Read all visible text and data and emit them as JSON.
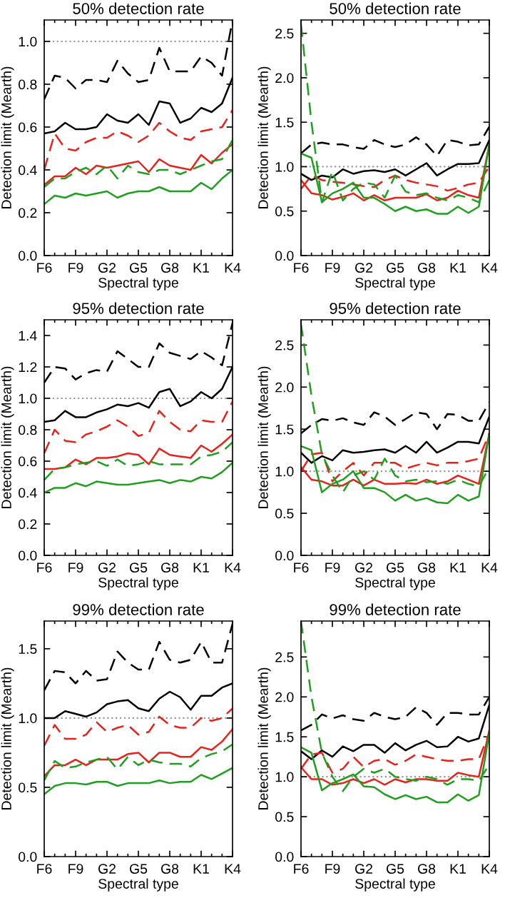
{
  "chart_data": [
    {
      "type": "line",
      "title": "50% detection rate",
      "xlabel": "Spectral type",
      "ylabel": "Detection limit (Mearth)",
      "categories": [
        "F6",
        null,
        null,
        "F9",
        null,
        null,
        "G2",
        null,
        null,
        "G5",
        null,
        null,
        "G8",
        null,
        null,
        "K1",
        null,
        null,
        "K4"
      ],
      "ylim": [
        0.0,
        1.1
      ],
      "yticks": [
        {
          "value": 0,
          "label": "0.0"
        },
        0.2,
        0.4,
        0.6,
        0.8,
        {
          "value": 1,
          "label": "1.0"
        }
      ],
      "ref_lines": [
        {
          "axis": "y",
          "value": 1.0,
          "color": "#999999",
          "line_style": "dotted"
        }
      ],
      "series": [
        {
          "color": "#000000",
          "line_style": "dashed",
          "values": [
            0.73,
            0.84,
            0.83,
            0.78,
            0.82,
            0.82,
            0.81,
            0.91,
            0.85,
            0.81,
            0.82,
            0.97,
            0.86,
            0.86,
            0.86,
            0.93,
            0.9,
            0.84,
            1.1
          ]
        },
        {
          "color": "#000000",
          "line_style": "solid",
          "values": [
            0.57,
            0.58,
            0.62,
            0.59,
            0.59,
            0.6,
            0.66,
            0.63,
            0.62,
            0.66,
            0.61,
            0.72,
            0.71,
            0.62,
            0.64,
            0.69,
            0.67,
            0.71,
            0.83
          ]
        },
        {
          "color": "#e8221a",
          "line_style": "dashed",
          "values": [
            0.4,
            0.57,
            0.5,
            0.49,
            0.53,
            0.55,
            0.55,
            0.58,
            0.56,
            0.53,
            0.56,
            0.62,
            0.58,
            0.55,
            0.54,
            0.58,
            0.59,
            0.6,
            0.68
          ]
        },
        {
          "color": "#e8221a",
          "line_style": "solid",
          "values": [
            0.33,
            0.37,
            0.37,
            0.41,
            0.38,
            0.42,
            0.41,
            0.42,
            0.43,
            0.44,
            0.39,
            0.45,
            0.42,
            0.41,
            0.4,
            0.47,
            0.43,
            0.48,
            0.52
          ]
        },
        {
          "color": "#1ea01e",
          "line_style": "dashed",
          "values": [
            0.32,
            0.36,
            0.36,
            0.39,
            0.41,
            0.38,
            0.42,
            0.36,
            0.42,
            0.39,
            0.38,
            0.4,
            0.4,
            0.38,
            0.4,
            0.42,
            0.44,
            0.45,
            0.54
          ]
        },
        {
          "color": "#1ea01e",
          "line_style": "solid",
          "values": [
            0.24,
            0.28,
            0.27,
            0.29,
            0.28,
            0.29,
            0.3,
            0.27,
            0.29,
            0.3,
            0.3,
            0.32,
            0.3,
            0.3,
            0.3,
            0.34,
            0.31,
            0.36,
            0.4
          ]
        }
      ]
    },
    {
      "type": "line",
      "title": "50% detection rate",
      "xlabel": "Spectral type",
      "ylabel": "Detection limit (Mearth)",
      "categories": [
        "F6",
        null,
        null,
        "F9",
        null,
        null,
        "G2",
        null,
        null,
        "G5",
        null,
        null,
        "G8",
        null,
        null,
        "K1",
        null,
        null,
        "K4"
      ],
      "ylim": [
        0.0,
        2.65
      ],
      "yticks": [
        {
          "value": 0,
          "label": "0.0"
        },
        0.5,
        {
          "value": 1,
          "label": "1.0"
        },
        1.5,
        {
          "value": 2,
          "label": "2.0"
        },
        2.5
      ],
      "ref_lines": [
        {
          "axis": "y",
          "value": 1.0,
          "color": "#999999",
          "line_style": "dotted"
        }
      ],
      "series": [
        {
          "color": "#000000",
          "line_style": "dashed",
          "values": [
            1.15,
            1.25,
            1.27,
            1.25,
            1.25,
            1.22,
            1.2,
            1.3,
            1.25,
            1.22,
            1.25,
            1.33,
            1.25,
            1.12,
            1.3,
            1.28,
            1.24,
            1.25,
            1.45
          ]
        },
        {
          "color": "#000000",
          "line_style": "solid",
          "values": [
            0.92,
            0.85,
            0.9,
            0.88,
            0.97,
            0.92,
            0.95,
            0.96,
            0.94,
            0.97,
            0.9,
            0.97,
            1.04,
            0.9,
            0.97,
            1.03,
            1.03,
            1.04,
            1.3
          ]
        },
        {
          "color": "#e8221a",
          "line_style": "dashed",
          "values": [
            0.75,
            0.9,
            0.85,
            0.83,
            0.82,
            0.8,
            0.78,
            0.77,
            0.85,
            0.9,
            0.85,
            0.82,
            0.8,
            0.78,
            0.73,
            0.76,
            0.8,
            0.82,
            1.0
          ]
        },
        {
          "color": "#e8221a",
          "line_style": "solid",
          "values": [
            0.85,
            0.7,
            0.68,
            0.63,
            0.66,
            0.7,
            0.62,
            0.68,
            0.62,
            0.65,
            0.65,
            0.65,
            0.69,
            0.62,
            0.65,
            0.73,
            0.68,
            0.65,
            1.25
          ]
        },
        {
          "color": "#1ea01e",
          "line_style": "dashed",
          "values": [
            2.6,
            1.5,
            0.6,
            0.95,
            0.62,
            0.75,
            0.82,
            0.8,
            0.65,
            0.9,
            0.72,
            0.68,
            0.7,
            0.65,
            0.62,
            0.68,
            0.65,
            0.6,
            0.85
          ]
        },
        {
          "color": "#1ea01e",
          "line_style": "solid",
          "values": [
            1.15,
            1.1,
            0.6,
            0.7,
            0.75,
            0.82,
            0.65,
            0.65,
            0.58,
            0.5,
            0.55,
            0.5,
            0.52,
            0.47,
            0.47,
            0.55,
            0.48,
            0.55,
            1.25
          ]
        }
      ]
    },
    {
      "type": "line",
      "title": "95% detection rate",
      "xlabel": "Spectral type",
      "ylabel": "Detection limit (Mearth)",
      "categories": [
        "F6",
        null,
        null,
        "F9",
        null,
        null,
        "G2",
        null,
        null,
        "G5",
        null,
        null,
        "G8",
        null,
        null,
        "K1",
        null,
        null,
        "K4"
      ],
      "ylim": [
        0.0,
        1.5
      ],
      "yticks": [
        {
          "value": 0,
          "label": "0.0"
        },
        0.2,
        0.4,
        0.6,
        0.8,
        {
          "value": 1,
          "label": "1.0"
        },
        1.2,
        1.4
      ],
      "ref_lines": [
        {
          "axis": "y",
          "value": 1.0,
          "color": "#999999",
          "line_style": "dotted"
        }
      ],
      "series": [
        {
          "color": "#000000",
          "line_style": "dashed",
          "values": [
            1.1,
            1.2,
            1.19,
            1.12,
            1.16,
            1.18,
            1.17,
            1.3,
            1.25,
            1.2,
            1.2,
            1.35,
            1.29,
            1.27,
            1.25,
            1.3,
            1.26,
            1.21,
            1.48
          ]
        },
        {
          "color": "#000000",
          "line_style": "solid",
          "values": [
            0.85,
            0.86,
            0.92,
            0.88,
            0.88,
            0.91,
            0.93,
            0.96,
            0.95,
            0.97,
            0.94,
            1.04,
            1.06,
            0.95,
            0.98,
            1.04,
            1.0,
            1.06,
            1.2
          ]
        },
        {
          "color": "#e8221a",
          "line_style": "dashed",
          "values": [
            0.65,
            0.8,
            0.73,
            0.72,
            0.77,
            0.79,
            0.82,
            0.86,
            0.82,
            0.76,
            0.78,
            0.92,
            0.85,
            0.8,
            0.79,
            0.86,
            0.85,
            0.85,
            0.98
          ]
        },
        {
          "color": "#e8221a",
          "line_style": "solid",
          "values": [
            0.55,
            0.55,
            0.56,
            0.61,
            0.58,
            0.62,
            0.62,
            0.63,
            0.65,
            0.64,
            0.58,
            0.68,
            0.64,
            0.63,
            0.62,
            0.7,
            0.66,
            0.71,
            0.77
          ]
        },
        {
          "color": "#1ea01e",
          "line_style": "dashed",
          "values": [
            0.48,
            0.55,
            0.56,
            0.58,
            0.59,
            0.6,
            0.57,
            0.61,
            0.57,
            0.58,
            0.6,
            0.58,
            0.58,
            0.58,
            0.58,
            0.63,
            0.64,
            0.66,
            0.72
          ]
        },
        {
          "color": "#1ea01e",
          "line_style": "solid",
          "values": [
            0.4,
            0.43,
            0.43,
            0.46,
            0.44,
            0.47,
            0.46,
            0.45,
            0.45,
            0.46,
            0.47,
            0.48,
            0.46,
            0.48,
            0.47,
            0.5,
            0.49,
            0.53,
            0.59
          ]
        }
      ]
    },
    {
      "type": "line",
      "title": "95% detection rate",
      "xlabel": "Spectral type",
      "ylabel": "Detection limit (Mearth)",
      "categories": [
        "F6",
        null,
        null,
        "F9",
        null,
        null,
        "G2",
        null,
        null,
        "G5",
        null,
        null,
        "G8",
        null,
        null,
        "K1",
        null,
        null,
        "K4"
      ],
      "ylim": [
        0.0,
        2.8
      ],
      "yticks": [
        {
          "value": 0,
          "label": "0.0"
        },
        0.5,
        {
          "value": 1,
          "label": "1.0"
        },
        1.5,
        {
          "value": 2,
          "label": "2.0"
        },
        2.5
      ],
      "ref_lines": [
        {
          "axis": "y",
          "value": 1.0,
          "color": "#999999",
          "line_style": "dotted"
        }
      ],
      "series": [
        {
          "color": "#000000",
          "line_style": "dashed",
          "values": [
            1.45,
            1.55,
            1.62,
            1.6,
            1.63,
            1.58,
            1.55,
            1.7,
            1.65,
            1.55,
            1.62,
            1.7,
            1.68,
            1.5,
            1.68,
            1.67,
            1.6,
            1.6,
            1.82
          ]
        },
        {
          "color": "#000000",
          "line_style": "solid",
          "values": [
            1.22,
            1.1,
            1.18,
            1.13,
            1.25,
            1.22,
            1.23,
            1.25,
            1.26,
            1.22,
            1.3,
            1.22,
            1.35,
            1.22,
            1.28,
            1.35,
            1.35,
            1.33,
            1.65
          ]
        },
        {
          "color": "#e8221a",
          "line_style": "dashed",
          "values": [
            1.0,
            1.2,
            1.22,
            0.88,
            1.0,
            1.1,
            0.95,
            1.1,
            1.1,
            1.1,
            1.03,
            1.07,
            1.1,
            1.07,
            1.1,
            1.1,
            1.12,
            1.15,
            1.45
          ]
        },
        {
          "color": "#e8221a",
          "line_style": "solid",
          "values": [
            1.05,
            0.9,
            0.88,
            0.83,
            0.83,
            0.9,
            0.83,
            0.9,
            0.85,
            0.85,
            0.86,
            0.85,
            0.9,
            0.85,
            0.88,
            0.95,
            0.9,
            0.85,
            1.45
          ]
        },
        {
          "color": "#1ea01e",
          "line_style": "dashed",
          "values": [
            2.75,
            1.9,
            1.2,
            0.95,
            0.75,
            0.95,
            1.0,
            0.9,
            1.15,
            0.95,
            0.88,
            0.9,
            0.87,
            0.88,
            0.85,
            0.9,
            0.85,
            0.82,
            1.05
          ]
        },
        {
          "color": "#1ea01e",
          "line_style": "solid",
          "values": [
            1.3,
            1.25,
            0.75,
            0.85,
            0.9,
            1.0,
            0.8,
            0.8,
            0.75,
            0.65,
            0.72,
            0.65,
            0.68,
            0.63,
            0.62,
            0.72,
            0.65,
            0.7,
            1.45
          ]
        }
      ]
    },
    {
      "type": "line",
      "title": "99% detection rate",
      "xlabel": "Spectral type",
      "ylabel": "Detection limit (Mearth)",
      "categories": [
        "F6",
        null,
        null,
        "F9",
        null,
        null,
        "G2",
        null,
        null,
        "G5",
        null,
        null,
        "G8",
        null,
        null,
        "K1",
        null,
        null,
        "K4"
      ],
      "ylim": [
        0.0,
        1.7
      ],
      "yticks": [
        {
          "value": 0,
          "label": "0.0"
        },
        0.5,
        {
          "value": 1,
          "label": "1.0"
        },
        1.5
      ],
      "ref_lines": [
        {
          "axis": "y",
          "value": 1.0,
          "color": "#999999",
          "line_style": "dotted"
        }
      ],
      "series": [
        {
          "color": "#000000",
          "line_style": "dashed",
          "values": [
            1.2,
            1.34,
            1.33,
            1.25,
            1.34,
            1.27,
            1.28,
            1.48,
            1.4,
            1.35,
            1.35,
            1.55,
            1.42,
            1.4,
            1.42,
            1.55,
            1.4,
            1.4,
            1.68
          ]
        },
        {
          "color": "#000000",
          "line_style": "solid",
          "values": [
            1.0,
            1.0,
            1.05,
            1.03,
            1.01,
            1.04,
            1.1,
            1.12,
            1.13,
            1.07,
            1.05,
            1.14,
            1.19,
            1.15,
            1.06,
            1.16,
            1.16,
            1.22,
            1.25
          ]
        },
        {
          "color": "#e8221a",
          "line_style": "dashed",
          "values": [
            0.8,
            0.95,
            0.85,
            0.85,
            0.88,
            0.97,
            0.9,
            0.93,
            0.95,
            0.88,
            0.9,
            1.01,
            0.95,
            0.93,
            0.93,
            1.0,
            0.98,
            1.0,
            1.07
          ]
        },
        {
          "color": "#e8221a",
          "line_style": "solid",
          "values": [
            0.58,
            0.66,
            0.66,
            0.7,
            0.66,
            0.7,
            0.7,
            0.7,
            0.74,
            0.75,
            0.68,
            0.75,
            0.75,
            0.72,
            0.72,
            0.79,
            0.77,
            0.83,
            0.92
          ]
        },
        {
          "color": "#1ea01e",
          "line_style": "dashed",
          "values": [
            0.55,
            0.69,
            0.64,
            0.65,
            0.68,
            0.7,
            0.72,
            0.63,
            0.72,
            0.66,
            0.7,
            0.68,
            0.67,
            0.67,
            0.65,
            0.71,
            0.74,
            0.76,
            0.81
          ]
        },
        {
          "color": "#1ea01e",
          "line_style": "solid",
          "values": [
            0.45,
            0.51,
            0.53,
            0.53,
            0.52,
            0.54,
            0.54,
            0.51,
            0.53,
            0.53,
            0.53,
            0.55,
            0.53,
            0.54,
            0.54,
            0.59,
            0.56,
            0.6,
            0.64
          ]
        }
      ]
    },
    {
      "type": "line",
      "title": "99% detection rate",
      "xlabel": "Spectral type",
      "ylabel": "Detection limit (Mearth)",
      "categories": [
        "F6",
        null,
        null,
        "F9",
        null,
        null,
        "G2",
        null,
        null,
        "G5",
        null,
        null,
        "G8",
        null,
        null,
        "K1",
        null,
        null,
        "K4"
      ],
      "ylim": [
        0.0,
        2.95
      ],
      "yticks": [
        {
          "value": 0,
          "label": "0.0"
        },
        0.5,
        {
          "value": 1,
          "label": "1.0"
        },
        1.5,
        {
          "value": 2,
          "label": "2.0"
        },
        2.5
      ],
      "ref_lines": [
        {
          "axis": "y",
          "value": 1.0,
          "color": "#999999",
          "line_style": "dotted"
        }
      ],
      "series": [
        {
          "color": "#000000",
          "line_style": "dashed",
          "values": [
            1.58,
            1.65,
            1.78,
            1.73,
            1.77,
            1.72,
            1.7,
            1.8,
            1.75,
            1.72,
            1.75,
            1.87,
            1.8,
            1.65,
            1.8,
            1.8,
            1.78,
            1.78,
            2.0
          ]
        },
        {
          "color": "#000000",
          "line_style": "solid",
          "values": [
            1.32,
            1.22,
            1.33,
            1.25,
            1.38,
            1.32,
            1.4,
            1.4,
            1.3,
            1.42,
            1.33,
            1.4,
            1.45,
            1.37,
            1.38,
            1.5,
            1.44,
            1.48,
            1.9
          ]
        },
        {
          "color": "#e8221a",
          "line_style": "dashed",
          "values": [
            1.1,
            1.28,
            1.3,
            1.05,
            1.1,
            1.25,
            1.12,
            1.2,
            1.22,
            1.15,
            1.2,
            1.28,
            1.25,
            1.22,
            1.2,
            1.2,
            1.22,
            1.22,
            1.55
          ]
        },
        {
          "color": "#e8221a",
          "line_style": "solid",
          "values": [
            1.12,
            0.97,
            0.97,
            0.9,
            0.92,
            0.97,
            0.92,
            0.97,
            0.9,
            0.97,
            0.93,
            0.97,
            0.97,
            0.95,
            0.95,
            1.05,
            1.02,
            1.0,
            1.58
          ]
        },
        {
          "color": "#1ea01e",
          "line_style": "dashed",
          "values": [
            2.95,
            2.0,
            1.3,
            1.0,
            0.82,
            1.0,
            1.1,
            1.05,
            1.1,
            1.0,
            0.97,
            0.95,
            1.0,
            0.97,
            0.9,
            0.97,
            0.97,
            0.95,
            1.15
          ]
        },
        {
          "color": "#1ea01e",
          "line_style": "solid",
          "values": [
            1.37,
            1.3,
            0.83,
            0.92,
            0.97,
            1.03,
            0.88,
            0.87,
            0.78,
            0.72,
            0.77,
            0.72,
            0.75,
            0.68,
            0.68,
            0.78,
            0.7,
            0.77,
            1.55
          ]
        }
      ]
    }
  ]
}
